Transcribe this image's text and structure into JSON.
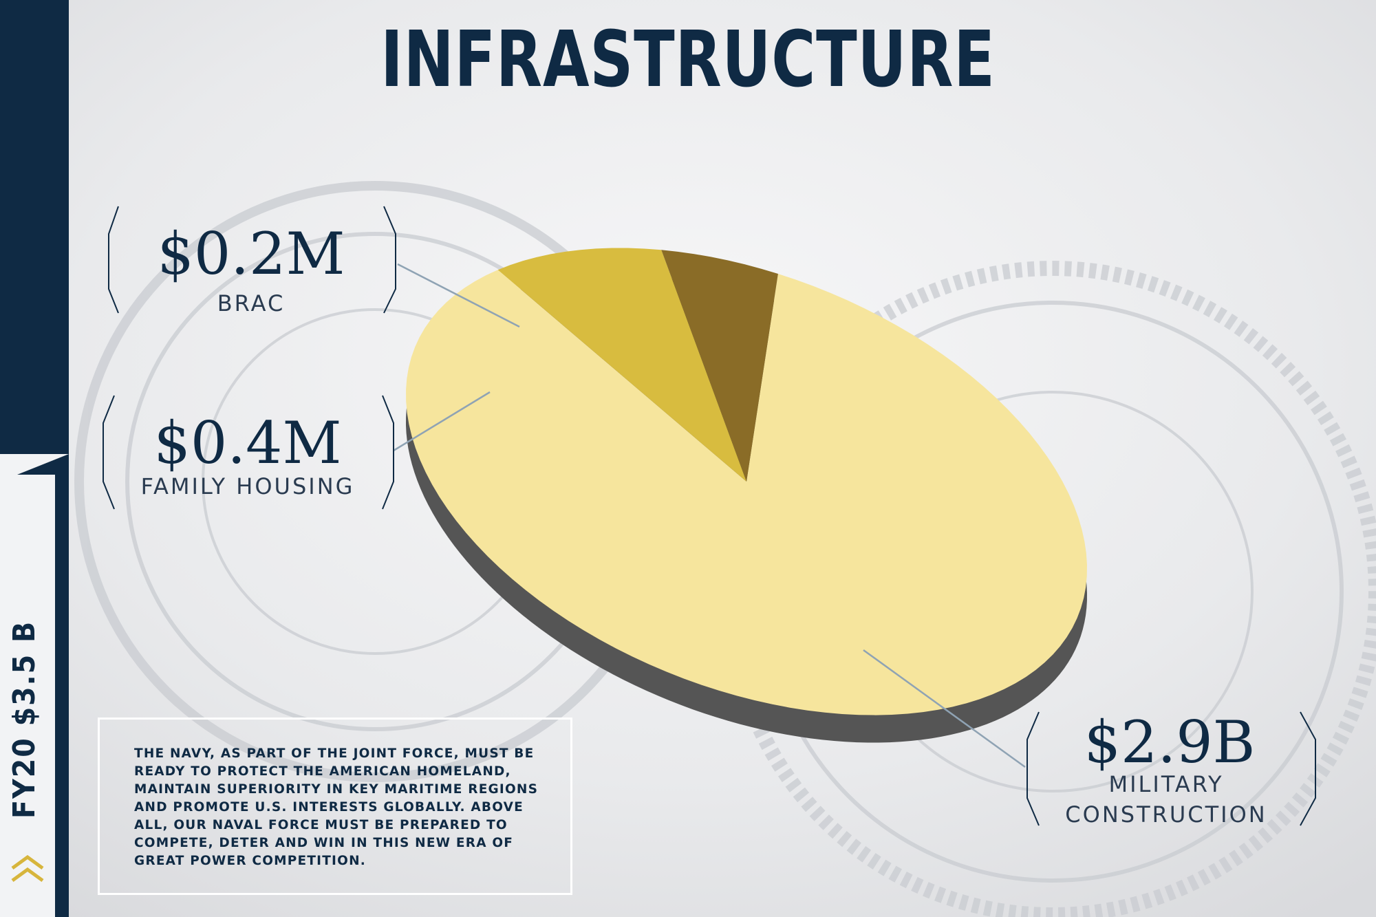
{
  "title": "INFRASTRUCTURE",
  "sidebar": {
    "label": "FY20 $3.5 B"
  },
  "description": "THE NAVY, AS PART OF THE JOINT FORCE, MUST BE READY TO PROTECT THE AMERICAN HOMELAND, MAINTAIN SUPERIORITY IN KEY MARITIME REGIONS AND PROMOTE U.S. INTERESTS GLOBALLY. ABOVE ALL, OUR NAVAL FORCE MUST BE PREPARED TO COMPETE, DETER AND WIN IN THIS NEW ERA OF GREAT POWER COMPETITION.",
  "colors": {
    "navy": "#0f2a44",
    "military_construction": "#f6e59d",
    "family_housing": "#d8bc3f",
    "brac": "#8a6c27",
    "pie_side": "#555555"
  },
  "chart_data": {
    "type": "pie",
    "title": "INFRASTRUCTURE",
    "total_label": "FY20 $3.5 B",
    "slices": [
      {
        "label": "MILITARY CONSTRUCTION",
        "value_label": "$2.9B",
        "value": 2.9,
        "unit": "B",
        "share": 0.855
      },
      {
        "label": "FAMILY HOUSING",
        "value_label": "$0.4M",
        "value": 0.4,
        "unit": "M",
        "share": 0.09
      },
      {
        "label": "BRAC",
        "value_label": "$0.2M",
        "value": 0.2,
        "unit": "M",
        "share": 0.055
      }
    ]
  }
}
